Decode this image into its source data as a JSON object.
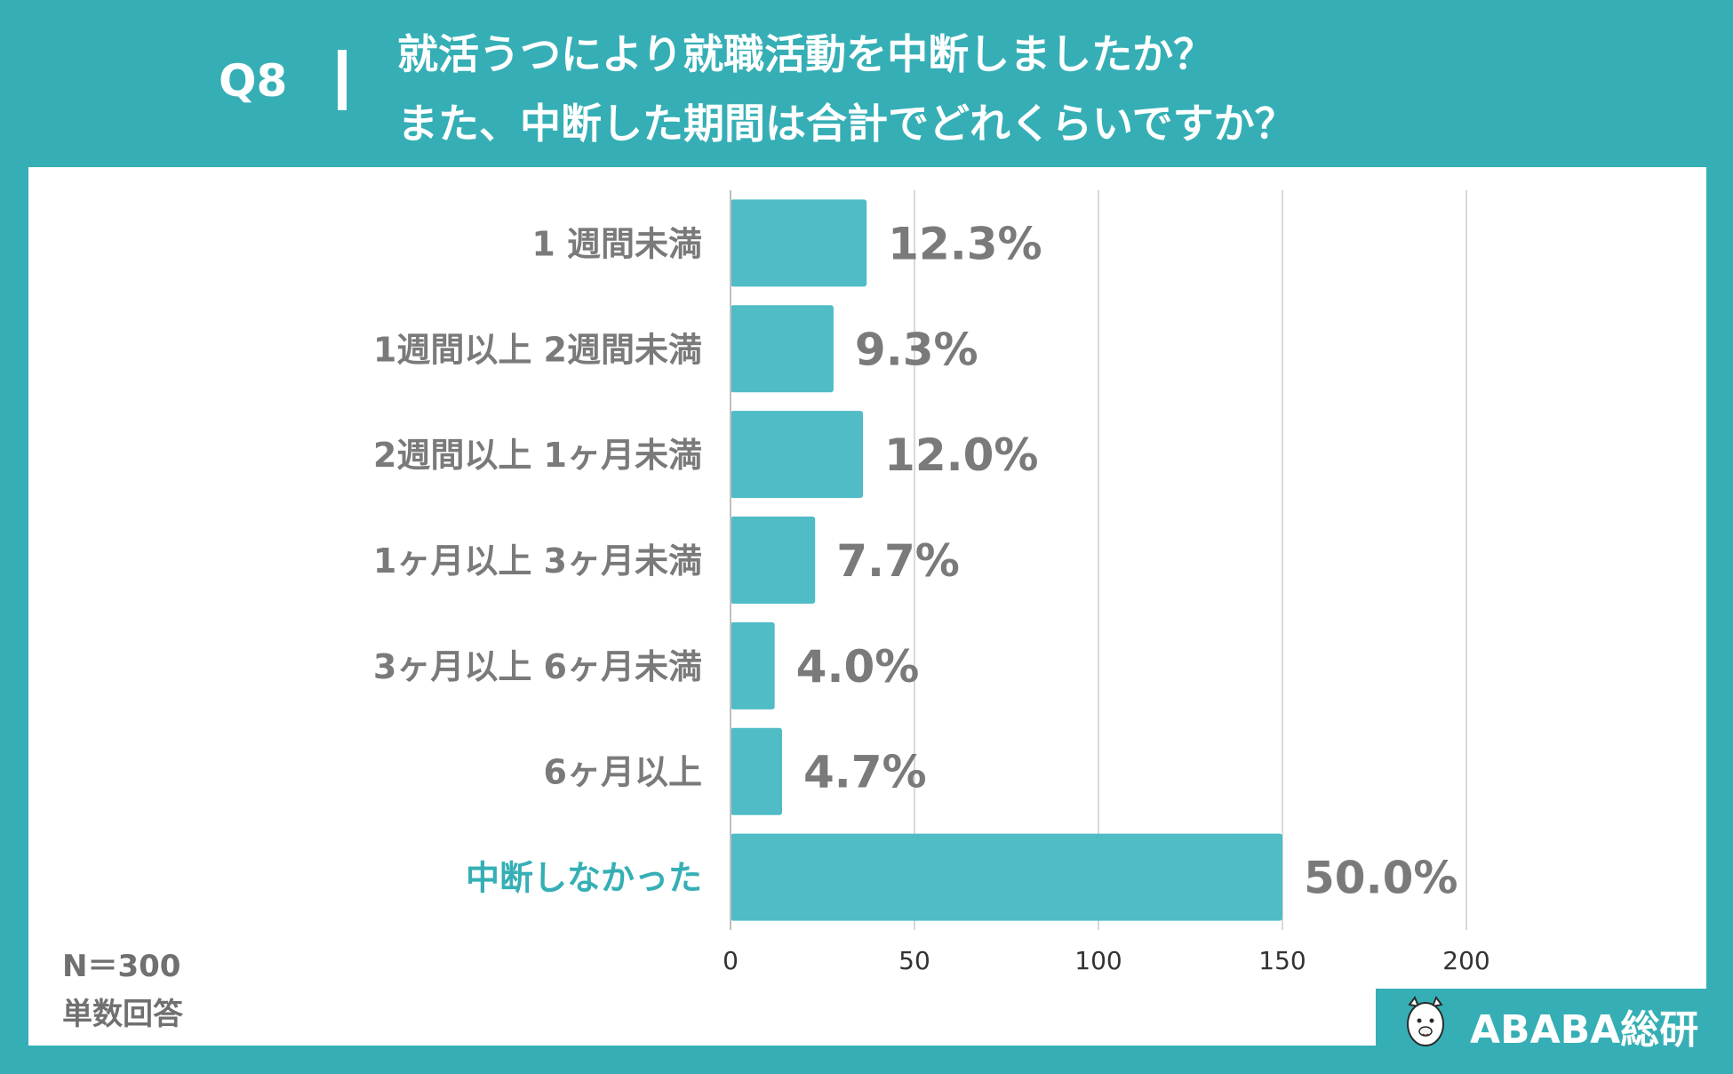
{
  "header": {
    "question_number": "Q8",
    "title_line1": "就活うつにより就職活動を中断しましたか？",
    "title_line2": "また、中断した期間は合計でどれくらいですか？"
  },
  "colors": {
    "background": "#35afb5",
    "bar": "#4fbcc6",
    "label_gray": "#7a7a7a",
    "highlight": "#35afb5"
  },
  "footnote": {
    "sample_size": "N＝300",
    "answer_type": "単数回答"
  },
  "logo": {
    "icon": "alpaca-icon",
    "text": "ABABA総研"
  },
  "chart_data": {
    "type": "bar",
    "orientation": "horizontal",
    "categories": [
      "1 週間未満",
      "1週間以上 2週間未満",
      "2週間以上 1ヶ月未満",
      "1ヶ月以上 3ヶ月未満",
      "3ヶ月以上 6ヶ月未満",
      "6ヶ月以上",
      "中断しなかった"
    ],
    "values": [
      37,
      28,
      36,
      23,
      12,
      14,
      150
    ],
    "data_labels": [
      "12.3%",
      "9.3%",
      "12.0%",
      "7.7%",
      "4.0%",
      "4.7%",
      "50.0%"
    ],
    "highlighted_category": "中断しなかった",
    "xlim": [
      0,
      200
    ],
    "xticks": [
      0,
      50,
      100,
      150,
      200
    ],
    "grid": true,
    "legend": "none"
  }
}
